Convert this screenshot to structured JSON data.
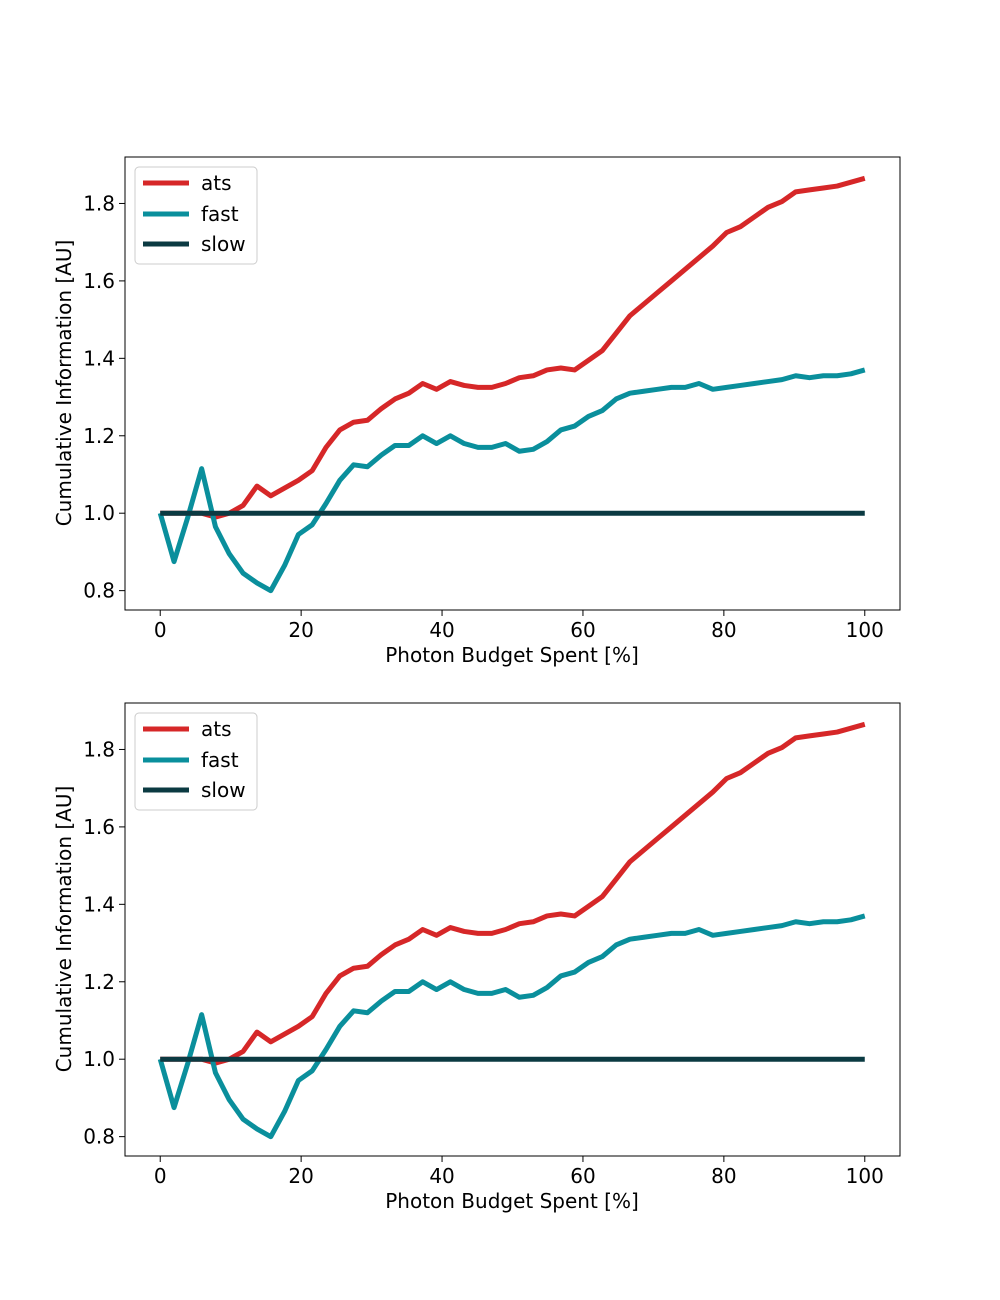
{
  "chart_data": [
    {
      "type": "line",
      "xlabel": "Photon Budget Spent [%]",
      "ylabel": "Cumulative Information [AU]",
      "xlim": [
        -5,
        105
      ],
      "ylim": [
        0.75,
        1.92
      ],
      "xticks": [
        0,
        20,
        40,
        60,
        80,
        100
      ],
      "yticks": [
        0.8,
        1.0,
        1.2,
        1.4,
        1.6,
        1.8
      ],
      "xtick_labels": [
        "0",
        "20",
        "40",
        "60",
        "80",
        "100"
      ],
      "ytick_labels": [
        "0.8",
        "1.0",
        "1.2",
        "1.4",
        "1.6",
        "1.8"
      ],
      "grid": false,
      "legend_position": "top-left",
      "x": [
        0,
        1.96,
        3.92,
        5.88,
        7.84,
        9.8,
        11.76,
        13.73,
        15.69,
        17.65,
        19.61,
        21.57,
        23.53,
        25.49,
        27.45,
        29.41,
        31.37,
        33.33,
        35.29,
        37.25,
        39.22,
        41.18,
        43.14,
        45.1,
        47.06,
        49.02,
        50.98,
        52.94,
        54.9,
        56.86,
        58.82,
        60.78,
        62.75,
        64.71,
        66.67,
        68.63,
        70.59,
        72.55,
        74.51,
        76.47,
        78.43,
        80.39,
        82.35,
        84.31,
        86.27,
        88.24,
        90.2,
        92.16,
        94.12,
        96.08,
        98.04,
        100
      ],
      "series": [
        {
          "name": "ats",
          "color": "#d62728",
          "values": [
            1.0,
            1.0,
            1.0,
            1.0,
            0.99,
            1.0,
            1.02,
            1.07,
            1.045,
            1.065,
            1.085,
            1.11,
            1.17,
            1.215,
            1.235,
            1.24,
            1.27,
            1.295,
            1.31,
            1.335,
            1.32,
            1.34,
            1.33,
            1.325,
            1.325,
            1.335,
            1.35,
            1.355,
            1.37,
            1.375,
            1.37,
            1.395,
            1.42,
            1.465,
            1.51,
            1.54,
            1.57,
            1.6,
            1.63,
            1.66,
            1.69,
            1.725,
            1.74,
            1.765,
            1.79,
            1.805,
            1.83,
            1.835,
            1.84,
            1.845,
            1.855,
            1.865
          ]
        },
        {
          "name": "fast",
          "color": "#0a8f9c",
          "values": [
            1.0,
            0.875,
            0.99,
            1.115,
            0.965,
            0.895,
            0.845,
            0.82,
            0.8,
            0.865,
            0.945,
            0.97,
            1.025,
            1.085,
            1.125,
            1.12,
            1.15,
            1.175,
            1.175,
            1.2,
            1.18,
            1.2,
            1.18,
            1.17,
            1.17,
            1.18,
            1.16,
            1.165,
            1.185,
            1.215,
            1.225,
            1.25,
            1.265,
            1.295,
            1.31,
            1.315,
            1.32,
            1.325,
            1.325,
            1.335,
            1.32,
            1.325,
            1.33,
            1.335,
            1.34,
            1.345,
            1.355,
            1.35,
            1.355,
            1.355,
            1.36,
            1.37
          ]
        },
        {
          "name": "slow",
          "color": "#0b3a42",
          "values": [
            1.0,
            1.0,
            1.0,
            1.0,
            1.0,
            1.0,
            1.0,
            1.0,
            1.0,
            1.0,
            1.0,
            1.0,
            1.0,
            1.0,
            1.0,
            1.0,
            1.0,
            1.0,
            1.0,
            1.0,
            1.0,
            1.0,
            1.0,
            1.0,
            1.0,
            1.0,
            1.0,
            1.0,
            1.0,
            1.0,
            1.0,
            1.0,
            1.0,
            1.0,
            1.0,
            1.0,
            1.0,
            1.0,
            1.0,
            1.0,
            1.0,
            1.0,
            1.0,
            1.0,
            1.0,
            1.0,
            1.0,
            1.0,
            1.0,
            1.0,
            1.0,
            1.0
          ]
        }
      ]
    },
    {
      "type": "line",
      "xlabel": "Photon Budget Spent [%]",
      "ylabel": "Cumulative Information [AU]",
      "xlim": [
        -5,
        105
      ],
      "ylim": [
        0.75,
        1.92
      ],
      "xticks": [
        0,
        20,
        40,
        60,
        80,
        100
      ],
      "yticks": [
        0.8,
        1.0,
        1.2,
        1.4,
        1.6,
        1.8
      ],
      "xtick_labels": [
        "0",
        "20",
        "40",
        "60",
        "80",
        "100"
      ],
      "ytick_labels": [
        "0.8",
        "1.0",
        "1.2",
        "1.4",
        "1.6",
        "1.8"
      ],
      "grid": false,
      "legend_position": "top-left",
      "x": [
        0,
        1.96,
        3.92,
        5.88,
        7.84,
        9.8,
        11.76,
        13.73,
        15.69,
        17.65,
        19.61,
        21.57,
        23.53,
        25.49,
        27.45,
        29.41,
        31.37,
        33.33,
        35.29,
        37.25,
        39.22,
        41.18,
        43.14,
        45.1,
        47.06,
        49.02,
        50.98,
        52.94,
        54.9,
        56.86,
        58.82,
        60.78,
        62.75,
        64.71,
        66.67,
        68.63,
        70.59,
        72.55,
        74.51,
        76.47,
        78.43,
        80.39,
        82.35,
        84.31,
        86.27,
        88.24,
        90.2,
        92.16,
        94.12,
        96.08,
        98.04,
        100
      ],
      "series": [
        {
          "name": "ats",
          "color": "#d62728",
          "values": [
            1.0,
            1.0,
            1.0,
            1.0,
            0.99,
            1.0,
            1.02,
            1.07,
            1.045,
            1.065,
            1.085,
            1.11,
            1.17,
            1.215,
            1.235,
            1.24,
            1.27,
            1.295,
            1.31,
            1.335,
            1.32,
            1.34,
            1.33,
            1.325,
            1.325,
            1.335,
            1.35,
            1.355,
            1.37,
            1.375,
            1.37,
            1.395,
            1.42,
            1.465,
            1.51,
            1.54,
            1.57,
            1.6,
            1.63,
            1.66,
            1.69,
            1.725,
            1.74,
            1.765,
            1.79,
            1.805,
            1.83,
            1.835,
            1.84,
            1.845,
            1.855,
            1.865
          ]
        },
        {
          "name": "fast",
          "color": "#0a8f9c",
          "values": [
            1.0,
            0.875,
            0.99,
            1.115,
            0.965,
            0.895,
            0.845,
            0.82,
            0.8,
            0.865,
            0.945,
            0.97,
            1.025,
            1.085,
            1.125,
            1.12,
            1.15,
            1.175,
            1.175,
            1.2,
            1.18,
            1.2,
            1.18,
            1.17,
            1.17,
            1.18,
            1.16,
            1.165,
            1.185,
            1.215,
            1.225,
            1.25,
            1.265,
            1.295,
            1.31,
            1.315,
            1.32,
            1.325,
            1.325,
            1.335,
            1.32,
            1.325,
            1.33,
            1.335,
            1.34,
            1.345,
            1.355,
            1.35,
            1.355,
            1.355,
            1.36,
            1.37
          ]
        },
        {
          "name": "slow",
          "color": "#0b3a42",
          "values": [
            1.0,
            1.0,
            1.0,
            1.0,
            1.0,
            1.0,
            1.0,
            1.0,
            1.0,
            1.0,
            1.0,
            1.0,
            1.0,
            1.0,
            1.0,
            1.0,
            1.0,
            1.0,
            1.0,
            1.0,
            1.0,
            1.0,
            1.0,
            1.0,
            1.0,
            1.0,
            1.0,
            1.0,
            1.0,
            1.0,
            1.0,
            1.0,
            1.0,
            1.0,
            1.0,
            1.0,
            1.0,
            1.0,
            1.0,
            1.0,
            1.0,
            1.0,
            1.0,
            1.0,
            1.0,
            1.0,
            1.0,
            1.0,
            1.0,
            1.0,
            1.0,
            1.0
          ]
        }
      ]
    }
  ]
}
